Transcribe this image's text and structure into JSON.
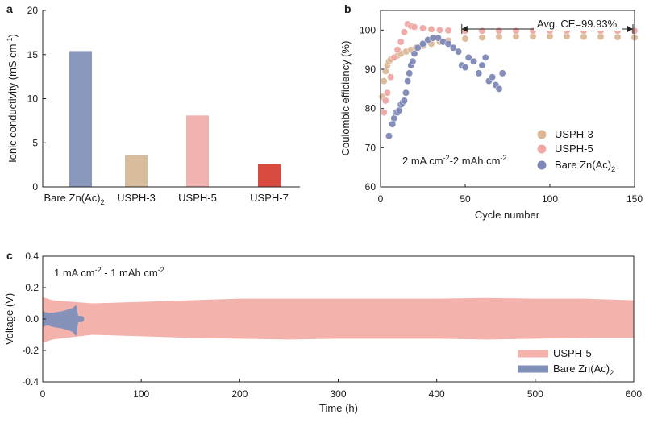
{
  "colors": {
    "bare": "#8a98bd",
    "uspa3": "#d8bd9c",
    "uspa5": "#f2b3b0",
    "uspa7": "#d94a3f",
    "bare_dot": "#7f89b8",
    "uspa3_dot": "#dcb898",
    "uspa5_dot": "#f0a8a5",
    "v_uspa5": "#f4b2ad",
    "v_bare": "#7f8fba"
  },
  "chart_data": [
    {
      "panel": "a",
      "type": "bar",
      "ylabel": "Ionic conductivity (mS cm",
      "ylabel_sup": "-1",
      "ylabel_end": ")",
      "ylim": [
        0,
        20
      ],
      "yticks": [
        "0",
        "5",
        "10",
        "15",
        "20"
      ],
      "categories": [
        {
          "name": "Bare Zn(Ac)",
          "sub": "2",
          "value": 15.4
        },
        {
          "name": "USPH-3",
          "sub": "",
          "value": 3.6
        },
        {
          "name": "USPH-5",
          "sub": "",
          "value": 8.1
        },
        {
          "name": "USPH-7",
          "sub": "",
          "value": 2.6
        }
      ]
    },
    {
      "panel": "b",
      "type": "scatter",
      "xlabel": "Cycle number",
      "ylabel": "Coulombic efficiency (%)",
      "xlim": [
        0,
        150
      ],
      "ylim": [
        60,
        105
      ],
      "xticks": [
        "0",
        "50",
        "100",
        "150"
      ],
      "yticks": [
        "60",
        "70",
        "80",
        "90",
        "100"
      ],
      "annotation": "Avg. CE=99.93%",
      "annotation_range": [
        48,
        150
      ],
      "condition": {
        "a": "2 mA cm",
        "a_sup": "-2",
        "b": "-2 mAh cm",
        "b_sup": "-2"
      },
      "series": [
        {
          "name": "USPH-3",
          "sub": "",
          "x": [
            1,
            2,
            3,
            4,
            5,
            6,
            8,
            10,
            12,
            15,
            18,
            21,
            25,
            30,
            35,
            40,
            50,
            60,
            70,
            80,
            90,
            100,
            110,
            120,
            130,
            140,
            150
          ],
          "y": [
            83,
            87,
            89.5,
            91,
            92,
            92.5,
            93,
            93.5,
            94,
            94.5,
            95,
            95.5,
            96,
            96.5,
            97,
            97.3,
            97.8,
            98.1,
            98.3,
            98.4,
            98.4,
            98.4,
            98.4,
            98.3,
            98.3,
            98.2,
            98.1
          ]
        },
        {
          "name": "USPH-5",
          "sub": "",
          "x": [
            2,
            3,
            4,
            6,
            8,
            10,
            12,
            14,
            16,
            18,
            20,
            25,
            30,
            35,
            40,
            50,
            60,
            70,
            80,
            90,
            100,
            110,
            120,
            130,
            140,
            150
          ],
          "y": [
            79,
            82,
            84,
            88,
            93,
            95,
            97,
            99.5,
            101.5,
            101,
            100.8,
            100.5,
            100.2,
            100,
            99.9,
            99.8,
            99.8,
            99.8,
            99.8,
            99.8,
            99.8,
            99.8,
            99.8,
            99.8,
            99.8,
            99.8
          ]
        },
        {
          "name": "Bare Zn(Ac)",
          "sub": "2",
          "x": [
            5,
            7,
            8,
            9,
            10,
            11,
            12,
            13,
            14,
            15,
            16,
            17,
            18,
            19,
            20,
            22,
            25,
            28,
            31,
            34,
            37,
            40,
            43,
            46,
            48,
            50,
            52,
            55,
            58,
            60,
            62,
            64,
            66,
            68,
            70,
            72
          ],
          "y": [
            73,
            76,
            77.5,
            79,
            79,
            79.5,
            81,
            81.5,
            82,
            84,
            87,
            89,
            91,
            92,
            94,
            95.5,
            96.5,
            97.5,
            98,
            98,
            97,
            96.5,
            95.5,
            94.5,
            91,
            90.5,
            93,
            92,
            89,
            91,
            93,
            87,
            88,
            86,
            85,
            89
          ]
        }
      ]
    },
    {
      "panel": "c",
      "type": "area",
      "xlabel": "Time (h)",
      "ylabel": "Voltage (V)",
      "xlim": [
        0,
        600
      ],
      "ylim": [
        -0.4,
        0.4
      ],
      "xticks": [
        "0",
        "100",
        "200",
        "300",
        "400",
        "500",
        "600"
      ],
      "yticks": [
        "-0.4",
        "-0.2",
        "0.0",
        "0.2",
        "0.4"
      ],
      "condition": {
        "a": "1 mA cm",
        "a_sup": "-2",
        "b": " - 1 mAh cm",
        "b_sup": "-2"
      },
      "series": [
        {
          "name": "USPH-5",
          "sub": "",
          "t": [
            0,
            10,
            50,
            100,
            150,
            200,
            250,
            300,
            350,
            400,
            450,
            500,
            550,
            600
          ],
          "upper": [
            0.14,
            0.12,
            0.1,
            0.11,
            0.12,
            0.13,
            0.13,
            0.13,
            0.13,
            0.13,
            0.135,
            0.13,
            0.13,
            0.12
          ],
          "lower": [
            -0.15,
            -0.13,
            -0.1,
            -0.11,
            -0.12,
            -0.125,
            -0.13,
            -0.125,
            -0.125,
            -0.125,
            -0.13,
            -0.125,
            -0.12,
            -0.12
          ]
        },
        {
          "name": "Bare Zn(Ac)",
          "sub": "2",
          "t": [
            0,
            5,
            10,
            20,
            30,
            34,
            36,
            40,
            42
          ],
          "upper": [
            0.05,
            0.04,
            0.04,
            0.05,
            0.07,
            0.09,
            0.02,
            0.02,
            0.01
          ],
          "lower": [
            -0.05,
            -0.04,
            -0.05,
            -0.06,
            -0.08,
            -0.11,
            -0.02,
            -0.02,
            -0.01
          ]
        }
      ]
    }
  ],
  "labels": {
    "a": "a",
    "b": "b",
    "c": "c"
  }
}
